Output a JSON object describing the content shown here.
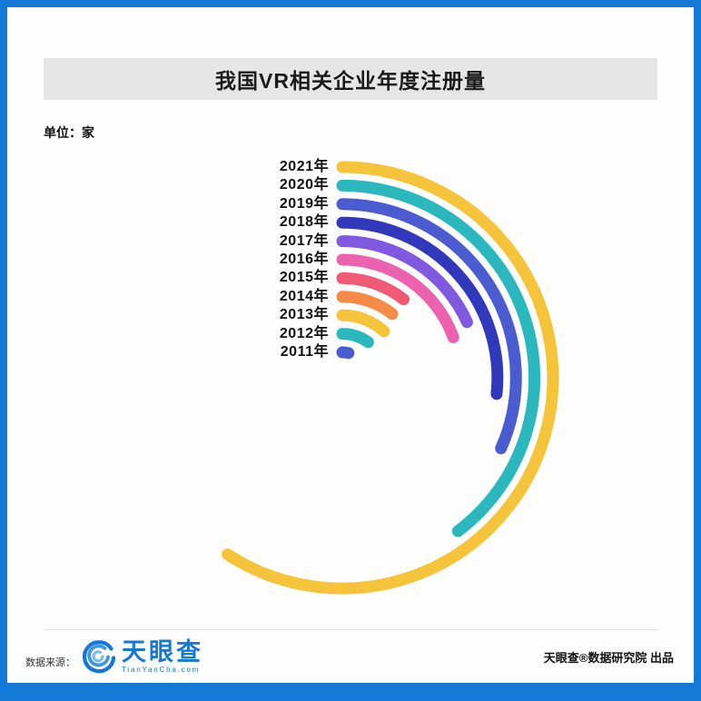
{
  "frame": {
    "border_color": "#1478D6"
  },
  "header": {
    "title": "我国VR相关企业年度注册量",
    "bg_color": "#E6E6E6"
  },
  "unit_label": "单位：家",
  "chart_data": {
    "type": "radial-bar",
    "title": "我国VR相关企业年度注册量",
    "unit": "家",
    "start_angle": "top",
    "direction": "clockwise",
    "value_labels_shown": false,
    "value_note": "figure shows no numeric labels; arc sweep angles (degrees) estimated from pixels represent relative registration volume",
    "categories": [
      "2021年",
      "2020年",
      "2019年",
      "2018年",
      "2017年",
      "2016年",
      "2015年",
      "2014年",
      "2013年",
      "2012年",
      "2011年"
    ],
    "sweep_deg": [
      213,
      143,
      114,
      96,
      66,
      70,
      38,
      38,
      42,
      36,
      14
    ],
    "colors": [
      "#F6C43A",
      "#2AB8BE",
      "#4A5CD0",
      "#3238BC",
      "#8159E0",
      "#EC62AE",
      "#F05A74",
      "#F58B44",
      "#F6C43A",
      "#2AB8BE",
      "#4A5CD0"
    ]
  },
  "footer": {
    "source_label": "数据来源：",
    "logo_text": "天眼查",
    "logo_subtext": "TianYanCha.com",
    "credit": "天眼查®数据研究院 出品"
  }
}
